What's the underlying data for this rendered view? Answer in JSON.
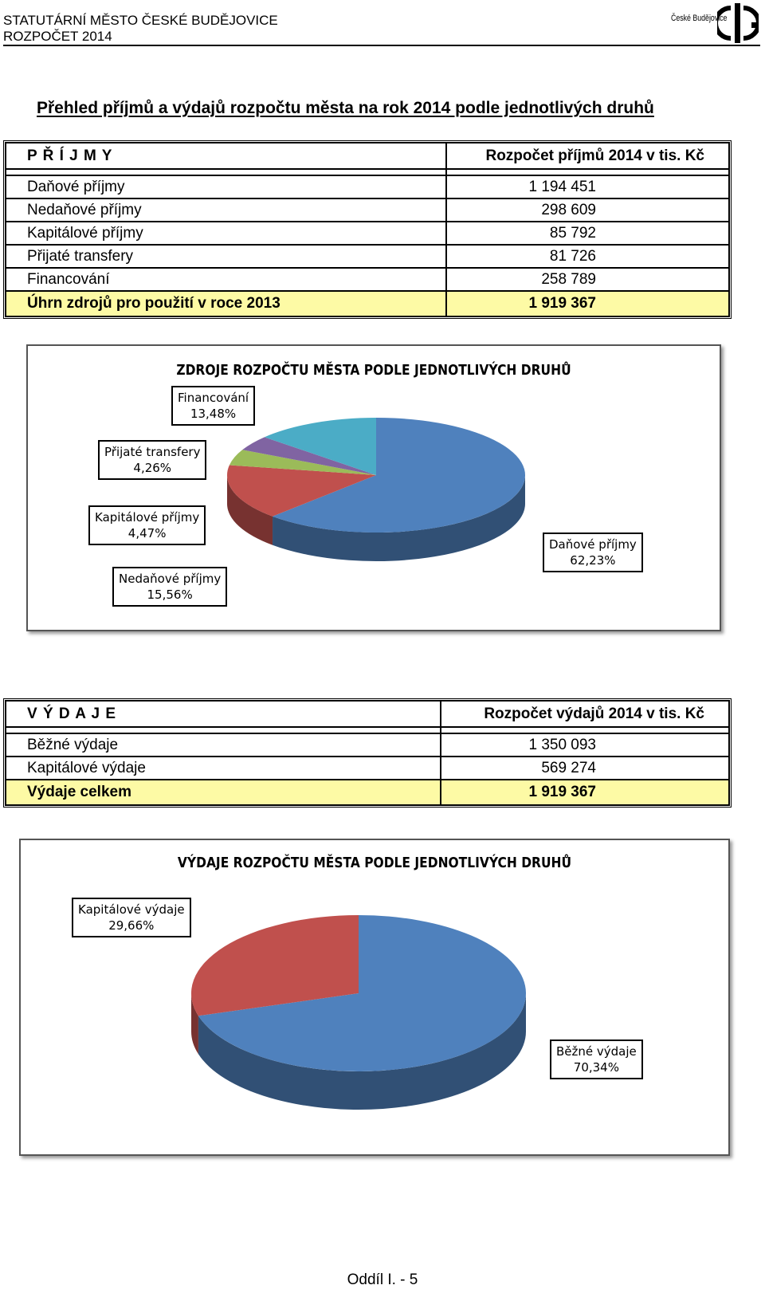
{
  "header": {
    "line1": "STATUTÁRNÍ MĚSTO ČESKÉ BUDĚJOVICE",
    "line2": "ROZPOČET 2014",
    "logo_text": "České Budějovice"
  },
  "title": "Přehled příjmů a výdajů rozpočtu města na rok 2014 podle jednotlivých druhů",
  "income_table": {
    "heading": "P Ř Í J M Y",
    "value_heading": "Rozpočet příjmů 2014 v tis. Kč",
    "rows": [
      {
        "label": "Daňové příjmy",
        "value": "1 194 451"
      },
      {
        "label": "Nedaňové příjmy",
        "value": "298 609"
      },
      {
        "label": "Kapitálové příjmy",
        "value": "85 792"
      },
      {
        "label": "Přijaté transfery",
        "value": "81 726"
      },
      {
        "label": "Financování",
        "value": "258 789"
      }
    ],
    "total_label": "Úhrn zdrojů pro použití v roce 2013",
    "total_value": "1 919 367"
  },
  "expense_table": {
    "heading": "V Ý D A J E",
    "value_heading": "Rozpočet výdajů 2014 v tis. Kč",
    "rows": [
      {
        "label": "Běžné výdaje",
        "value": "1 350 093"
      },
      {
        "label": "Kapitálové výdaje",
        "value": "569 274"
      }
    ],
    "total_label": "Výdaje celkem",
    "total_value": "1 919 367"
  },
  "chart_data": [
    {
      "type": "pie",
      "title": "ZDROJE ROZPOČTU MĚSTA PODLE JEDNOTLIVÝCH DRUHŮ",
      "categories": [
        "Daňové příjmy",
        "Nedaňové příjmy",
        "Kapitálové příjmy",
        "Přijaté transfery",
        "Financování"
      ],
      "values": [
        62.23,
        15.56,
        4.47,
        4.26,
        13.48
      ],
      "labels": [
        "62,23%",
        "15,56%",
        "4,47%",
        "4,26%",
        "13,48%"
      ],
      "colors": [
        "#4f81bd",
        "#c0504d",
        "#9bbb59",
        "#8064a2",
        "#4bacc6"
      ],
      "style": "3d-pie"
    },
    {
      "type": "pie",
      "title": "VÝDAJE ROZPOČTU MĚSTA PODLE JEDNOTLIVÝCH DRUHŮ",
      "categories": [
        "Běžné výdaje",
        "Kapitálové výdaje"
      ],
      "values": [
        70.34,
        29.66
      ],
      "labels": [
        "70,34%",
        "29,66%"
      ],
      "colors": [
        "#4f81bd",
        "#c0504d"
      ],
      "style": "3d-pie"
    }
  ],
  "footer": "Oddíl I. - 5"
}
